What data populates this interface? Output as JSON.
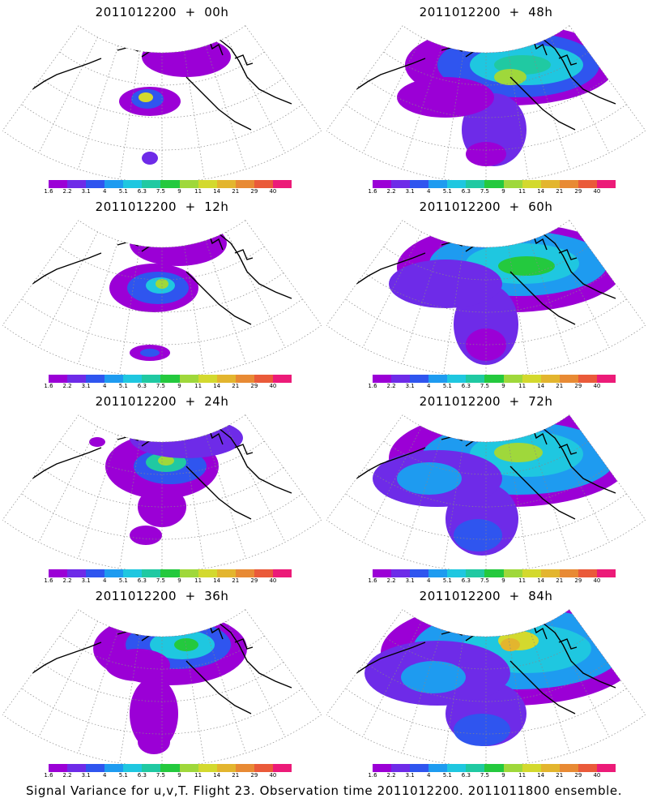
{
  "caption": "Signal Variance for u,v,T. Flight 23. Observation time 2011012200. 2011011800 ensemble.",
  "colorbar": {
    "colors": [
      "#9b00d6",
      "#6e2be8",
      "#2f55ef",
      "#1e9bf0",
      "#1fc7e0",
      "#20c9a2",
      "#24c93e",
      "#9fd83b",
      "#d3d92e",
      "#e3b52e",
      "#e88a34",
      "#ea5a3a",
      "#ec1b78"
    ],
    "labels": [
      "1.6",
      "2.2",
      "3.1",
      "4",
      "5.1",
      "6.3",
      "7.5",
      "9",
      "11",
      "14",
      "21",
      "29",
      "40"
    ]
  },
  "panels": [
    {
      "title": "2011012200  +  00h",
      "forecast_hour": 0
    },
    {
      "title": "2011012200  +  48h",
      "forecast_hour": 48
    },
    {
      "title": "2011012200  +  12h",
      "forecast_hour": 12
    },
    {
      "title": "2011012200  +  60h",
      "forecast_hour": 60
    },
    {
      "title": "2011012200  +  24h",
      "forecast_hour": 24
    },
    {
      "title": "2011012200  +  72h",
      "forecast_hour": 72
    },
    {
      "title": "2011012200  +  36h",
      "forecast_hour": 36
    },
    {
      "title": "2011012200  +  84h",
      "forecast_hour": 84
    }
  ]
}
